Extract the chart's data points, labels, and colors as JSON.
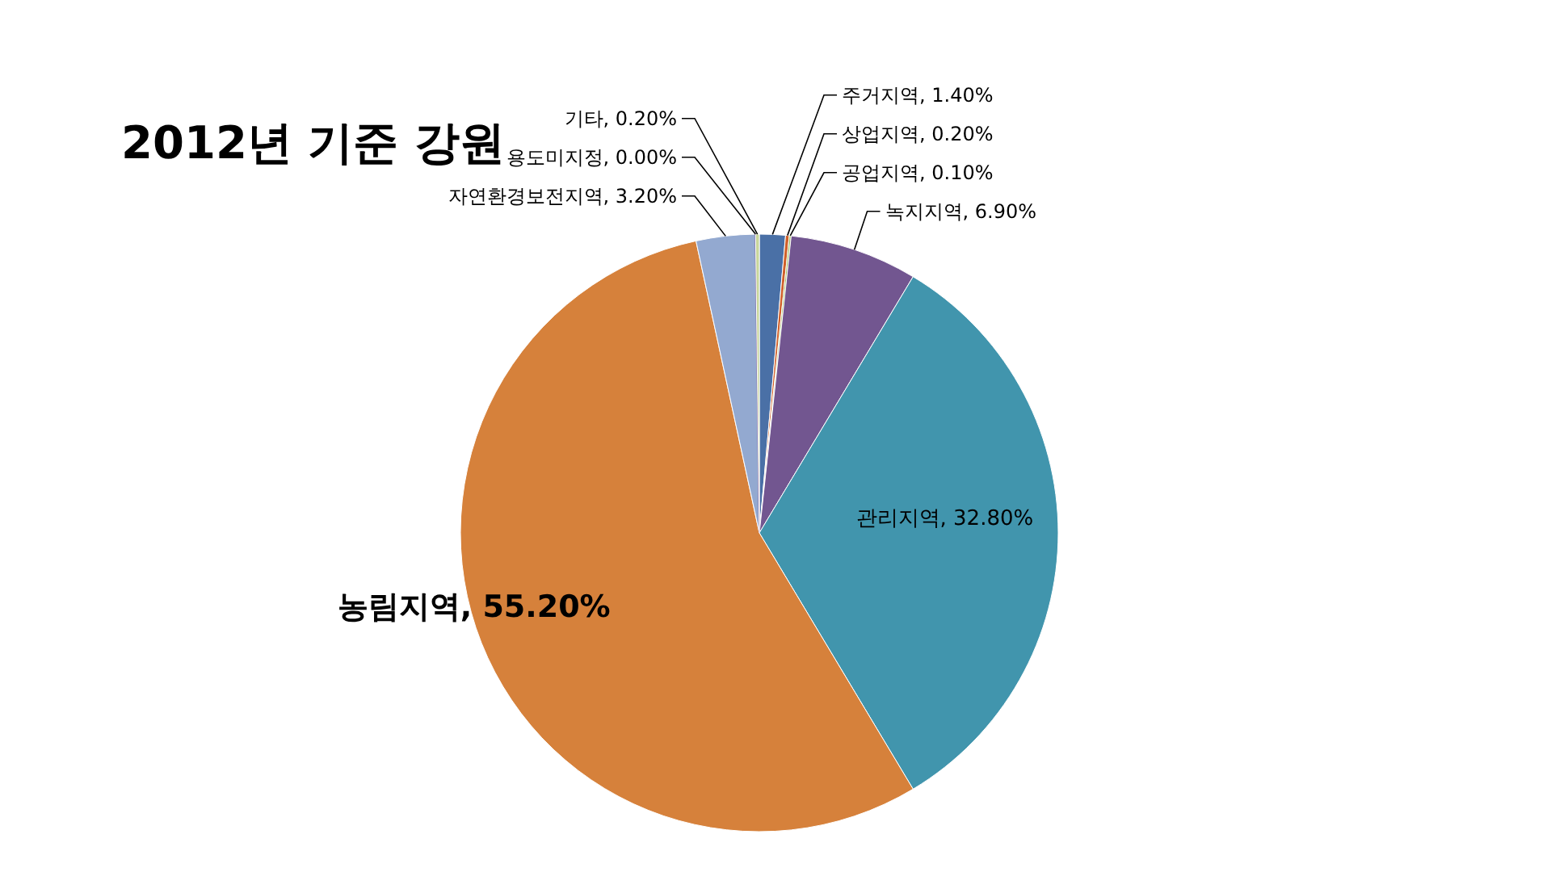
{
  "chart_data": {
    "type": "pie",
    "title": "2012년 기준 강원",
    "categories": [
      "주거지역",
      "상업지역",
      "공업지역",
      "녹지지역",
      "관리지역",
      "농림지역",
      "자연환경보전지역",
      "용도미지정",
      "기타"
    ],
    "values": [
      1.4,
      0.2,
      0.1,
      6.9,
      32.8,
      55.2,
      3.2,
      0.0,
      0.2
    ],
    "value_labels": [
      ", 1.40%",
      ", 0.20%",
      ", 0.10%",
      ", 6.90%",
      ", 32.80%",
      ", 55.20%",
      ", 3.20%",
      ", 0.00%",
      ", 0.20%"
    ],
    "legend": false,
    "colors": [
      "#4a70a6",
      "#d0602a",
      "#9bbb59",
      "#725690",
      "#4195ad",
      "#d6813b",
      "#93a9d0",
      "#8064a2",
      "#c8d69b"
    ]
  }
}
